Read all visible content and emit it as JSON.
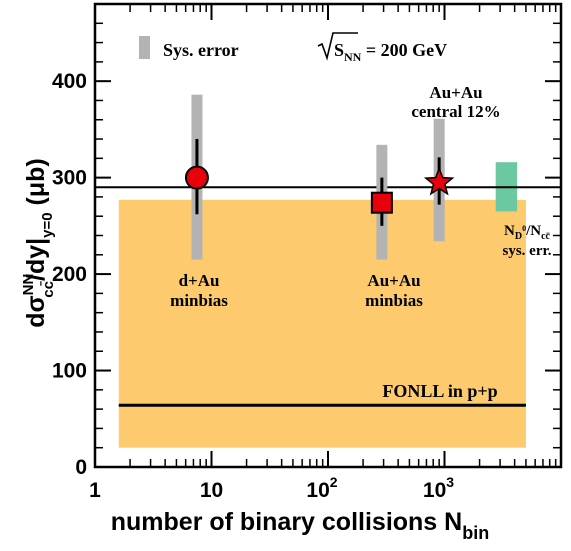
{
  "chart_data": {
    "type": "scatter",
    "x_scale": "log",
    "xlim": [
      1,
      10000
    ],
    "ylim": [
      0,
      480
    ],
    "grid": false,
    "xlabel": {
      "main": "number of binary collisions N",
      "sub": "bin"
    },
    "ylabel": {
      "main": "dσ",
      "sup": "NN",
      "sub": "cc̄",
      "mid": "/dy|",
      "sub2": "y=0",
      "unit": " (μb)"
    },
    "x_ticks": [
      {
        "value": 1,
        "label": "1",
        "exp": ""
      },
      {
        "value": 10,
        "label": "10",
        "exp": ""
      },
      {
        "value": 100,
        "label": "10",
        "exp": "2"
      },
      {
        "value": 1000,
        "label": "10",
        "exp": "3"
      }
    ],
    "y_ticks": [
      0,
      100,
      200,
      300,
      400
    ],
    "energy_label": {
      "pre": "S",
      "sub": "NN",
      "post": " = 200 GeV"
    },
    "legend": {
      "label": "Sys. error",
      "color": "#b3b3b3"
    },
    "colors": {
      "marker": "#e8000b",
      "sys_bar": "#b3b3b3",
      "fonll_band": "#fdcb6e",
      "fonll_line": "#000000",
      "nd_box": "#6cc8a0"
    },
    "points": [
      {
        "name": "d+Au minbias",
        "label_lines": [
          "d+Au",
          "minbias"
        ],
        "x": 7.5,
        "y": 300,
        "stat": [
          262,
          340
        ],
        "sys": [
          215,
          386
        ],
        "marker": "circle"
      },
      {
        "name": "Au+Au minbias",
        "label_lines": [
          "Au+Au",
          "minbias"
        ],
        "x": 290,
        "y": 274,
        "stat": [
          250,
          300
        ],
        "sys": [
          215,
          334
        ],
        "marker": "square"
      },
      {
        "name": "Au+Au central 12%",
        "label_lines": [
          "Au+Au",
          "central 12%"
        ],
        "x": 900,
        "y": 296,
        "stat": [
          272,
          321
        ],
        "sys": [
          234,
          361
        ],
        "marker": "star"
      }
    ],
    "reference_line": {
      "y": 290
    },
    "fonll": {
      "label": "FONLL in p+p",
      "central": 64,
      "band": [
        20,
        277
      ],
      "x_range": [
        1.6,
        5000
      ]
    },
    "nd_syst": {
      "label_lines": [
        "N/N",
        "sys. err."
      ],
      "x_range": [
        2750,
        4200
      ],
      "y_range": [
        265,
        316
      ]
    }
  }
}
